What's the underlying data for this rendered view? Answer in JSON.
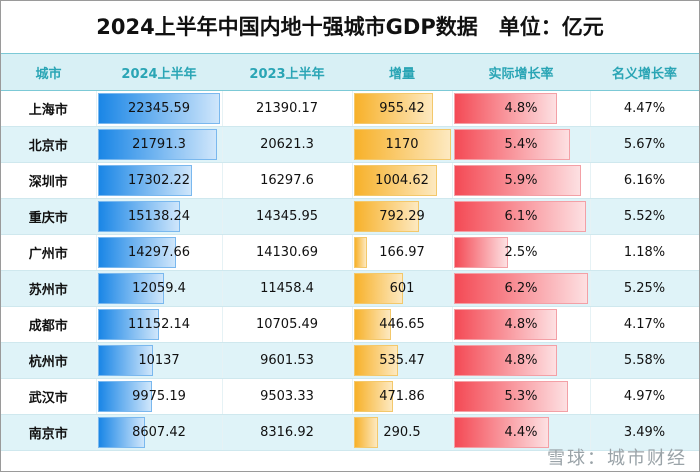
{
  "title": "2024上半年中国内地十强城市GDP数据　单位：亿元",
  "headers": [
    "城市",
    "2024上半年",
    "2023上半年",
    "增量",
    "实际增长率",
    "名义增长率"
  ],
  "rows": [
    {
      "city": "上海市",
      "h2024": "22345.59",
      "h2023": "21390.17",
      "increase": "955.42",
      "real": "4.8%",
      "nominal": "4.47%"
    },
    {
      "city": "北京市",
      "h2024": "21791.3",
      "h2023": "20621.3",
      "increase": "1170",
      "real": "5.4%",
      "nominal": "5.67%"
    },
    {
      "city": "深圳市",
      "h2024": "17302.22",
      "h2023": "16297.6",
      "increase": "1004.62",
      "real": "5.9%",
      "nominal": "6.16%"
    },
    {
      "city": "重庆市",
      "h2024": "15138.24",
      "h2023": "14345.95",
      "increase": "792.29",
      "real": "6.1%",
      "nominal": "5.52%"
    },
    {
      "city": "广州市",
      "h2024": "14297.66",
      "h2023": "14130.69",
      "increase": "166.97",
      "real": "2.5%",
      "nominal": "1.18%"
    },
    {
      "city": "苏州市",
      "h2024": "12059.4",
      "h2023": "11458.4",
      "increase": "601",
      "real": "6.2%",
      "nominal": "5.25%"
    },
    {
      "city": "成都市",
      "h2024": "11152.14",
      "h2023": "10705.49",
      "increase": "446.65",
      "real": "4.8%",
      "nominal": "4.17%"
    },
    {
      "city": "杭州市",
      "h2024": "10137",
      "h2023": "9601.53",
      "increase": "535.47",
      "real": "4.8%",
      "nominal": "5.58%"
    },
    {
      "city": "武汉市",
      "h2024": "9975.19",
      "h2023": "9503.33",
      "increase": "471.86",
      "real": "5.3%",
      "nominal": "4.97%"
    },
    {
      "city": "南京市",
      "h2024": "8607.42",
      "h2023": "8316.92",
      "increase": "290.5",
      "real": "4.4%",
      "nominal": "3.49%"
    }
  ],
  "bar_colors": {
    "h2024": "#1a86e6",
    "increase": "#f7b12a",
    "real": "#f44a55"
  },
  "watermark": "雪球：城市财经"
}
